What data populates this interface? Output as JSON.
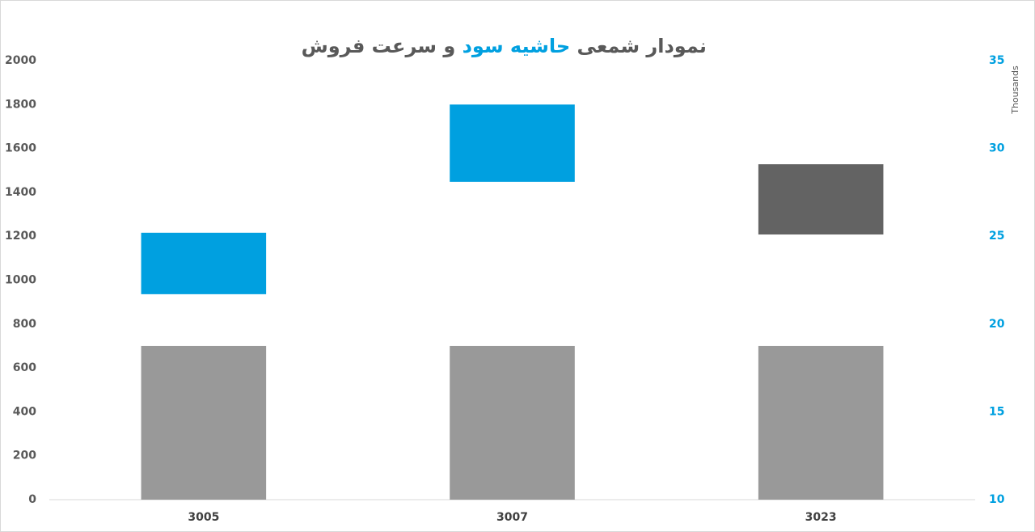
{
  "chart_data": {
    "type": "bar_candle",
    "title": [
      "نمودار شمعی ",
      "حاشیه سود",
      " و سرعت فروش"
    ],
    "title_colors": [
      "#595959",
      "#00a0e0",
      "#595959"
    ],
    "categories": [
      "3005",
      "3007",
      "3023"
    ],
    "series": [
      {
        "type": "bar",
        "color": "#999999",
        "values": [
          700,
          700,
          700
        ]
      },
      {
        "type": "candle",
        "axis": "y2",
        "up_color": "#00a0e0",
        "down_color": "#636363",
        "open": [
          21.7,
          28.1,
          29.1
        ],
        "close": [
          25.2,
          32.5,
          25.1
        ]
      }
    ],
    "ylim": [
      0,
      2000
    ],
    "yticks": [
      0,
      200,
      400,
      600,
      800,
      1000,
      1200,
      1400,
      1600,
      1800,
      2000
    ],
    "y2lim": [
      10,
      35
    ],
    "y2ticks": [
      10,
      15,
      20,
      25,
      30,
      35
    ],
    "y2label": "Thousands",
    "grid": false
  }
}
